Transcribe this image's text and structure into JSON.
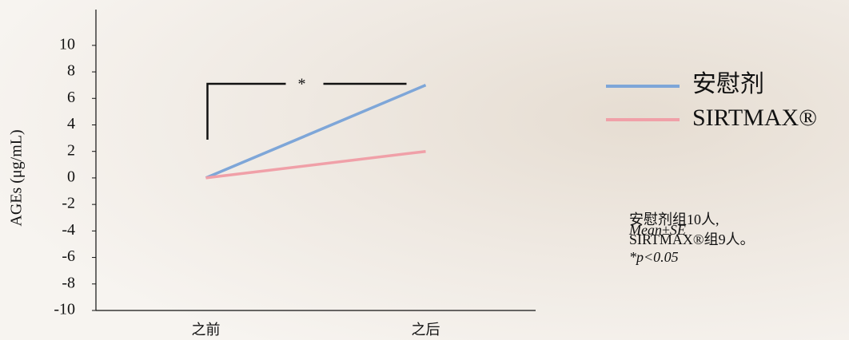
{
  "chart_data": {
    "type": "line",
    "y_label": "AGEs (μg/mL)",
    "categories": [
      "之前",
      "之后"
    ],
    "series": [
      {
        "name": "安慰剂",
        "color": "#7ea6d8",
        "values": [
          0,
          7
        ]
      },
      {
        "name": "SIRTMAX®",
        "color": "#f0a0a8",
        "values": [
          0,
          2
        ]
      }
    ],
    "ylim": [
      -10,
      12.7
    ],
    "yticks": [
      -10,
      -8,
      -6,
      -4,
      -2,
      0,
      2,
      4,
      6,
      8,
      10
    ],
    "significance": "*",
    "notes": [
      "安慰剂组10人,",
      "SIRTMAX®组9人。"
    ],
    "stats": [
      "Mean±SE",
      "*p<0.05"
    ]
  }
}
